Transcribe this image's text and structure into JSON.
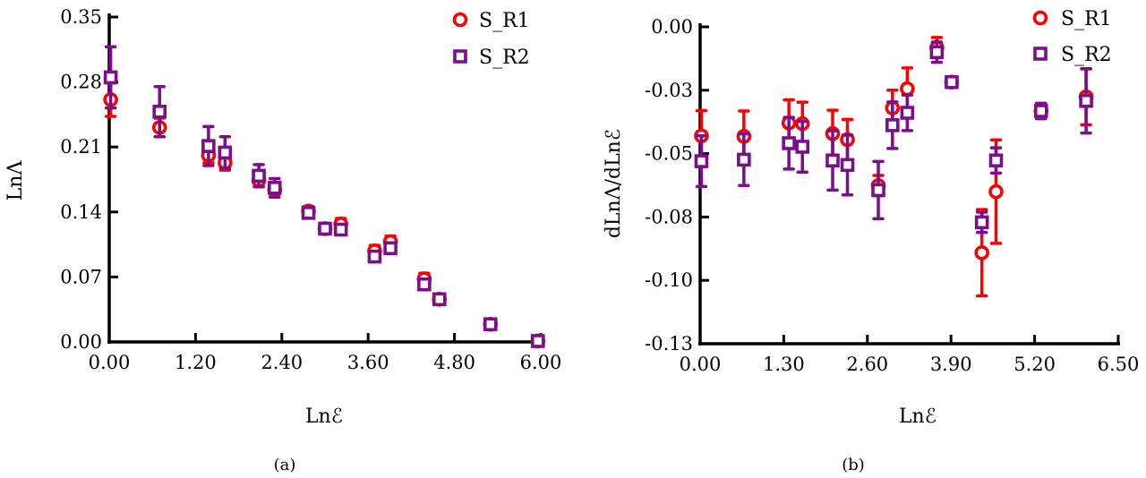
{
  "colors": {
    "S_R1": "#ff0000",
    "S_R2": "#7b0d8e",
    "axis": "#000000"
  },
  "chart_data": [
    {
      "type": "scatter",
      "caption": "(a)",
      "xlabel": "Lnℰ",
      "ylabel": "LnΛ",
      "xlim": [
        0,
        6
      ],
      "ylim": [
        0,
        0.35
      ],
      "xticks": [
        0,
        1.2,
        2.4,
        3.6,
        4.8,
        6.0
      ],
      "xtick_labels": [
        "0.00",
        "1.20",
        "2.40",
        "3.60",
        "4.80",
        "6.00"
      ],
      "yticks": [
        0,
        0.07,
        0.14,
        0.21,
        0.28,
        0.35
      ],
      "ytick_labels": [
        "0.00",
        "0.07",
        "0.14",
        "0.21",
        "0.28",
        "0.35"
      ],
      "legend": "top-right",
      "grid": false,
      "x": [
        0.02,
        0.7,
        1.38,
        1.61,
        2.08,
        2.3,
        2.77,
        3.0,
        3.22,
        3.69,
        3.91,
        4.38,
        4.59,
        5.3,
        5.96
      ],
      "series": [
        {
          "name": "S_R1",
          "marker": "circle",
          "values": [
            0.261,
            0.231,
            0.201,
            0.193,
            0.174,
            0.164,
            0.141,
            0.122,
            0.127,
            0.098,
            0.108,
            0.068,
            0.046,
            0.019,
            0.001
          ],
          "errors": [
            0.018,
            0.01,
            0.008,
            0.008,
            0.006,
            0.005,
            0.005,
            0.005,
            0.006,
            0.006,
            0.006,
            0.006,
            0.004,
            0.004,
            0.001
          ]
        },
        {
          "name": "S_R2",
          "marker": "square",
          "values": [
            0.285,
            0.248,
            0.211,
            0.204,
            0.179,
            0.166,
            0.139,
            0.122,
            0.121,
            0.092,
            0.101,
            0.062,
            0.046,
            0.019,
            0.001
          ],
          "errors": [
            0.033,
            0.027,
            0.021,
            0.017,
            0.012,
            0.01,
            0.004,
            0.004,
            0.004,
            0.004,
            0.004,
            0.004,
            0.003,
            0.004,
            0.001
          ]
        }
      ]
    },
    {
      "type": "scatter",
      "caption": "(b)",
      "xlabel": "Lnℰ",
      "ylabel": "dLnΛ/dLnℰ",
      "xlim": [
        0,
        6.5
      ],
      "ylim": [
        -0.125,
        0
      ],
      "xticks": [
        0,
        1.3,
        2.6,
        3.9,
        5.2,
        6.5
      ],
      "xtick_labels": [
        "0.00",
        "1.30",
        "2.60",
        "3.90",
        "5.20",
        "6.50"
      ],
      "yticks": [
        0,
        -0.025,
        -0.05,
        -0.075,
        -0.1,
        -0.125
      ],
      "ytick_labels": [
        "0.00",
        "-0.03",
        "-0.05",
        "-0.08",
        "-0.10",
        "-0.13"
      ],
      "legend": "top-right",
      "grid": false,
      "x": [
        0.02,
        0.68,
        1.38,
        1.59,
        2.06,
        2.29,
        2.77,
        2.99,
        3.22,
        3.68,
        3.91,
        4.38,
        4.6,
        5.3,
        6.0
      ],
      "series": [
        {
          "name": "S_R1",
          "marker": "circle",
          "values": [
            -0.043,
            -0.0432,
            -0.0379,
            -0.0382,
            -0.0421,
            -0.0445,
            -0.0626,
            -0.032,
            -0.0244,
            -0.0082,
            -0.0218,
            -0.0891,
            -0.065,
            -0.0332,
            -0.0276
          ],
          "errors": [
            0.01,
            0.01,
            0.0091,
            0.0085,
            0.0092,
            0.008,
            0.004,
            0.007,
            0.0082,
            0.004,
            0.002,
            0.017,
            0.0204,
            0.003,
            0.011
          ]
        },
        {
          "name": "S_R2",
          "marker": "square",
          "values": [
            -0.053,
            -0.0524,
            -0.0459,
            -0.0473,
            -0.0527,
            -0.0545,
            -0.0644,
            -0.0388,
            -0.0339,
            -0.01,
            -0.0218,
            -0.0771,
            -0.0527,
            -0.0332,
            -0.0292
          ],
          "errors": [
            0.01,
            0.0102,
            0.0102,
            0.01,
            0.0117,
            0.0118,
            0.0113,
            0.0092,
            0.007,
            0.004,
            0.002,
            0.004,
            0.005,
            0.003,
            0.0127
          ]
        }
      ]
    }
  ]
}
